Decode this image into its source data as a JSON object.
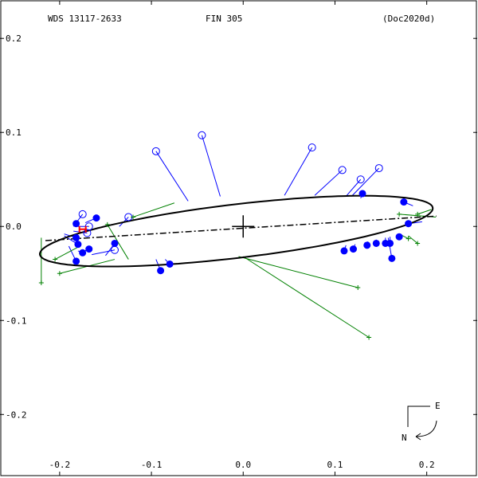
{
  "header": {
    "wds": "WDS 13117-2633",
    "name": "FIN 305",
    "reference": "(Doc2020d)"
  },
  "compass": {
    "east": "E",
    "north": "N"
  },
  "colors": {
    "orbit": "#000000",
    "filled_points": "#0000ff",
    "open_points": "#0000ff",
    "plus_points": "#008000",
    "highlight": "#ff0000"
  },
  "chart_data": {
    "type": "scatter",
    "title": "",
    "xlabel": "",
    "ylabel": "",
    "xlim": [
      -0.265,
      0.255
    ],
    "ylim": [
      -0.265,
      0.24
    ],
    "x_ticks": [
      -0.2,
      -0.1,
      0.0,
      0.1,
      0.2
    ],
    "x_tick_labels": [
      "-0.2",
      "-0.1",
      "0.0",
      "0.1",
      "0.2"
    ],
    "y_ticks": [
      0.2,
      0.1,
      0.0,
      -0.1,
      -0.2
    ],
    "y_tick_labels": [
      "0.2",
      "0.1",
      "0.0",
      "-0.1",
      "-0.2"
    ],
    "grid": false,
    "orbit_ellipse": {
      "center": [
        -0.0075,
        -0.005
      ],
      "semi_major": 0.2155,
      "semi_minor": 0.0285,
      "angle_deg": 6.6
    },
    "line_of_nodes": [
      [
        -0.2155,
        -0.015
      ],
      [
        0.2105,
        0.011
      ]
    ],
    "primary": [
      0.0,
      0.0
    ],
    "series": [
      {
        "marker": "filled-circle",
        "points": [
          {
            "obs": [
              -0.182,
              0.003
            ],
            "orbit": [
              -0.182,
              0.003
            ]
          },
          {
            "obs": [
              -0.16,
              0.009
            ],
            "orbit": [
              -0.172,
              0.004
            ]
          },
          {
            "obs": [
              -0.182,
              -0.012
            ],
            "orbit": [
              -0.195,
              -0.008
            ]
          },
          {
            "obs": [
              -0.18,
              -0.019
            ],
            "orbit": [
              -0.195,
              -0.01
            ]
          },
          {
            "obs": [
              -0.182,
              -0.037
            ],
            "orbit": [
              -0.19,
              -0.021
            ]
          },
          {
            "obs": [
              -0.175,
              -0.028
            ],
            "orbit": [
              -0.18,
              -0.026
            ]
          },
          {
            "obs": [
              -0.168,
              -0.024
            ],
            "orbit": [
              -0.175,
              -0.027
            ]
          },
          {
            "obs": [
              -0.14,
              -0.018
            ],
            "orbit": [
              -0.15,
              -0.031
            ]
          },
          {
            "obs": [
              -0.09,
              -0.047
            ],
            "orbit": [
              -0.095,
              -0.035
            ]
          },
          {
            "obs": [
              -0.08,
              -0.04
            ],
            "orbit": [
              -0.085,
              -0.035
            ]
          },
          {
            "obs": [
              0.11,
              -0.026
            ],
            "orbit": [
              0.112,
              -0.02
            ]
          },
          {
            "obs": [
              0.12,
              -0.024
            ],
            "orbit": [
              0.122,
              -0.019
            ]
          },
          {
            "obs": [
              0.135,
              -0.02
            ],
            "orbit": [
              0.136,
              -0.016
            ]
          },
          {
            "obs": [
              0.145,
              -0.018
            ],
            "orbit": [
              0.145,
              -0.014
            ]
          },
          {
            "obs": [
              0.155,
              -0.018
            ],
            "orbit": [
              0.155,
              -0.012
            ]
          },
          {
            "obs": [
              0.16,
              -0.018
            ],
            "orbit": [
              0.16,
              -0.011
            ]
          },
          {
            "obs": [
              0.162,
              -0.034
            ],
            "orbit": [
              0.158,
              -0.012
            ]
          },
          {
            "obs": [
              0.17,
              -0.011
            ],
            "orbit": [
              0.17,
              -0.008
            ]
          },
          {
            "obs": [
              0.13,
              0.035
            ],
            "orbit": [
              0.128,
              0.03
            ]
          },
          {
            "obs": [
              0.175,
              0.026
            ],
            "orbit": [
              0.185,
              0.022
            ]
          },
          {
            "obs": [
              0.18,
              0.003
            ],
            "orbit": [
              0.195,
              0.005
            ]
          }
        ]
      },
      {
        "marker": "open-circle",
        "points": [
          {
            "obs": [
              -0.095,
              0.08
            ],
            "orbit": [
              -0.06,
              0.027
            ]
          },
          {
            "obs": [
              -0.045,
              0.097
            ],
            "orbit": [
              -0.025,
              0.032
            ]
          },
          {
            "obs": [
              0.075,
              0.084
            ],
            "orbit": [
              0.045,
              0.033
            ]
          },
          {
            "obs": [
              0.108,
              0.06
            ],
            "orbit": [
              0.078,
              0.033
            ]
          },
          {
            "obs": [
              0.128,
              0.05
            ],
            "orbit": [
              0.112,
              0.032
            ]
          },
          {
            "obs": [
              0.148,
              0.062
            ],
            "orbit": [
              0.118,
              0.032
            ]
          },
          {
            "obs": [
              -0.125,
              0.01
            ],
            "orbit": [
              -0.135,
              0.0
            ]
          },
          {
            "obs": [
              -0.175,
              0.013
            ],
            "orbit": [
              -0.185,
              0.0
            ]
          },
          {
            "obs": [
              -0.17,
              -0.007
            ],
            "orbit": [
              -0.185,
              -0.005
            ]
          },
          {
            "obs": [
              -0.14,
              -0.025
            ],
            "orbit": [
              -0.165,
              -0.03
            ]
          },
          {
            "obs": [
              -0.168,
              0.0
            ],
            "orbit": [
              -0.18,
              0.0
            ]
          }
        ]
      },
      {
        "marker": "plus",
        "points": [
          {
            "obs": [
              -0.22,
              -0.06
            ],
            "orbit": [
              -0.22,
              -0.012
            ]
          },
          {
            "obs": [
              -0.205,
              -0.035
            ],
            "orbit": [
              -0.18,
              -0.022
            ]
          },
          {
            "obs": [
              -0.2,
              -0.05
            ],
            "orbit": [
              -0.14,
              -0.035
            ]
          },
          {
            "obs": [
              -0.148,
              0.002
            ],
            "orbit": [
              -0.125,
              -0.035
            ]
          },
          {
            "obs": [
              -0.12,
              0.01
            ],
            "orbit": [
              -0.075,
              0.025
            ]
          },
          {
            "obs": [
              0.125,
              -0.065
            ],
            "orbit": [
              -0.005,
              -0.032
            ]
          },
          {
            "obs": [
              0.137,
              -0.118
            ],
            "orbit": [
              0.0,
              -0.032
            ]
          },
          {
            "obs": [
              0.17,
              0.013
            ],
            "orbit": [
              0.21,
              0.01
            ]
          },
          {
            "obs": [
              0.19,
              0.013
            ],
            "orbit": [
              0.205,
              0.018
            ]
          },
          {
            "obs": [
              0.19,
              -0.018
            ],
            "orbit": [
              0.18,
              -0.01
            ]
          },
          {
            "obs": [
              0.18,
              -0.013
            ],
            "orbit": [
              0.17,
              -0.008
            ]
          }
        ]
      }
    ],
    "highlight_marker": [
      -0.175,
      -0.003
    ]
  }
}
